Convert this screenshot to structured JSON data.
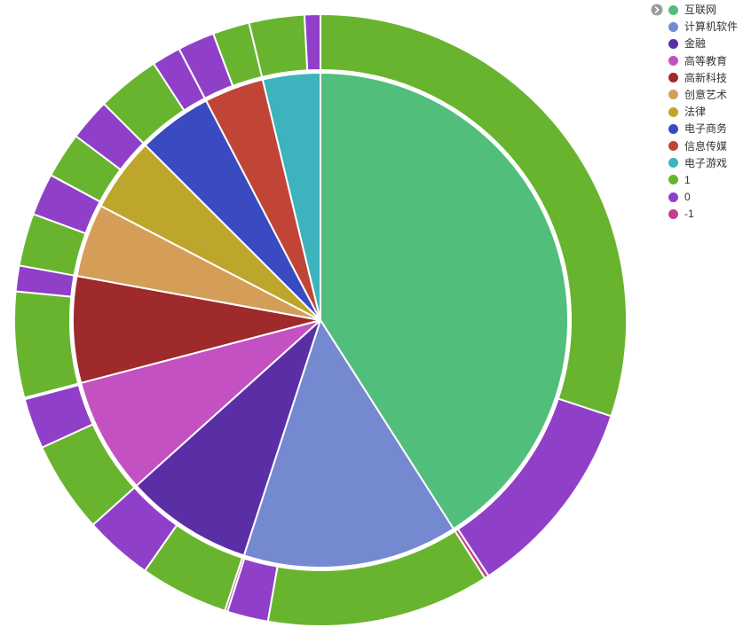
{
  "legend": {
    "position": "top-right",
    "nav_icon": "chevron-right",
    "items": [
      {
        "label": "互联网",
        "en": "internet",
        "color": "#52be7c"
      },
      {
        "label": "计算机软件",
        "en": "software",
        "color": "#7589d1"
      },
      {
        "label": "金融",
        "en": "finance",
        "color": "#5a2fa6"
      },
      {
        "label": "高等教育",
        "en": "education",
        "color": "#c451c2"
      },
      {
        "label": "高新科技",
        "en": "hightech",
        "color": "#9e2a2b"
      },
      {
        "label": "创意艺术",
        "en": "arts",
        "color": "#d59e58"
      },
      {
        "label": "法律",
        "en": "law",
        "color": "#bea62c"
      },
      {
        "label": "电子商务",
        "en": "ecommerce",
        "color": "#3a4ac0"
      },
      {
        "label": "信息传媒",
        "en": "media",
        "color": "#c04537"
      },
      {
        "label": "电子游戏",
        "en": "games",
        "color": "#3cb3bd"
      },
      {
        "label": "1",
        "en": "sentiment-pos",
        "color": "#68b42f"
      },
      {
        "label": "0",
        "en": "sentiment-zero",
        "color": "#9040c8"
      },
      {
        "label": "-1",
        "en": "sentiment-neg",
        "color": "#c43f90"
      }
    ]
  },
  "chart_data": {
    "type": "pie",
    "subtype": "nested-pie: inner ring = industry share, outer ring = sentiment (1 / 0 / -1) per industry",
    "title": "",
    "legend_position": "top-right",
    "background": "#ffffff",
    "border_color": "#ffffff",
    "center": [
      361,
      361
    ],
    "inner_pie_radius": 279,
    "outer_ring_radii": [
      282,
      345
    ],
    "start_angle_deg_clockwise_from_top": 0,
    "sentiment_colors": {
      "1": "#68b42f",
      "0": "#9040c8",
      "-1": "#c43f90"
    },
    "inner_series": [
      {
        "name": "互联网",
        "en": "internet",
        "start_deg": 0,
        "end_deg": 147.5,
        "percent": 41.0,
        "color": "#52be7c"
      },
      {
        "name": "计算机软件",
        "en": "software",
        "start_deg": 147.5,
        "end_deg": 198,
        "percent": 14.0,
        "color": "#7589d1"
      },
      {
        "name": "金融",
        "en": "finance",
        "start_deg": 198,
        "end_deg": 228,
        "percent": 8.3,
        "color": "#5a2fa6"
      },
      {
        "name": "高等教育",
        "en": "education",
        "start_deg": 228,
        "end_deg": 255.3,
        "percent": 7.6,
        "color": "#c451c2"
      },
      {
        "name": "高新科技",
        "en": "hightech",
        "start_deg": 255.3,
        "end_deg": 280.3,
        "percent": 6.9,
        "color": "#9e2a2b"
      },
      {
        "name": "创意艺术",
        "en": "arts",
        "start_deg": 280.3,
        "end_deg": 297.5,
        "percent": 4.8,
        "color": "#d59e58"
      },
      {
        "name": "法律",
        "en": "law",
        "start_deg": 297.5,
        "end_deg": 315,
        "percent": 4.9,
        "color": "#bea62c"
      },
      {
        "name": "电子商务",
        "en": "ecommerce",
        "start_deg": 315,
        "end_deg": 332.5,
        "percent": 4.9,
        "color": "#3a4ac0"
      },
      {
        "name": "信息传媒",
        "en": "media",
        "start_deg": 332.5,
        "end_deg": 346.5,
        "percent": 3.9,
        "color": "#c04537"
      },
      {
        "name": "电子游戏",
        "en": "games",
        "start_deg": 346.5,
        "end_deg": 360,
        "percent": 3.8,
        "color": "#3cb3bd"
      }
    ],
    "outer_series": [
      {
        "category": "互联网",
        "en": "internet",
        "sentiment": "1",
        "start_deg": 0,
        "end_deg": 108.3,
        "percent": 30.1
      },
      {
        "category": "互联网",
        "en": "internet",
        "sentiment": "0",
        "start_deg": 108.3,
        "end_deg": 146.7,
        "percent": 10.7
      },
      {
        "category": "互联网",
        "en": "internet",
        "sentiment": "-1",
        "start_deg": 146.7,
        "end_deg": 147.5,
        "percent": 0.2
      },
      {
        "category": "计算机软件",
        "en": "software",
        "sentiment": "1",
        "start_deg": 147.5,
        "end_deg": 189.9,
        "percent": 11.8
      },
      {
        "category": "计算机软件",
        "en": "software",
        "sentiment": "0",
        "start_deg": 189.9,
        "end_deg": 197.7,
        "percent": 2.2
      },
      {
        "category": "计算机软件",
        "en": "software",
        "sentiment": "-1",
        "start_deg": 197.7,
        "end_deg": 198.2,
        "percent": 0.1
      },
      {
        "category": "金融",
        "en": "finance",
        "sentiment": "1",
        "start_deg": 198.2,
        "end_deg": 215,
        "percent": 4.7
      },
      {
        "category": "金融",
        "en": "finance",
        "sentiment": "0",
        "start_deg": 215,
        "end_deg": 228,
        "percent": 3.6
      },
      {
        "category": "高等教育",
        "en": "education",
        "sentiment": "1",
        "start_deg": 228,
        "end_deg": 245.4,
        "percent": 4.8
      },
      {
        "category": "高等教育",
        "en": "education",
        "sentiment": "0",
        "start_deg": 245.4,
        "end_deg": 255,
        "percent": 2.7
      },
      {
        "category": "高等教育",
        "en": "education",
        "sentiment": "-1",
        "start_deg": 255,
        "end_deg": 255.3,
        "percent": 0.1
      },
      {
        "category": "高新科技",
        "en": "hightech",
        "sentiment": "1",
        "start_deg": 255.3,
        "end_deg": 275.4,
        "percent": 5.6
      },
      {
        "category": "高新科技",
        "en": "hightech",
        "sentiment": "0",
        "start_deg": 275.4,
        "end_deg": 280.3,
        "percent": 1.4
      },
      {
        "category": "创意艺术",
        "en": "arts",
        "sentiment": "1",
        "start_deg": 280.3,
        "end_deg": 290.3,
        "percent": 2.8
      },
      {
        "category": "创意艺术",
        "en": "arts",
        "sentiment": "0",
        "start_deg": 290.3,
        "end_deg": 298.3,
        "percent": 2.2
      },
      {
        "category": "法律",
        "en": "law",
        "sentiment": "1",
        "start_deg": 298.3,
        "end_deg": 307,
        "percent": 2.4
      },
      {
        "category": "法律",
        "en": "law",
        "sentiment": "0",
        "start_deg": 307,
        "end_deg": 315,
        "percent": 2.2
      },
      {
        "category": "电子商务",
        "en": "ecommerce",
        "sentiment": "1",
        "start_deg": 315,
        "end_deg": 327,
        "percent": 3.3
      },
      {
        "category": "电子商务",
        "en": "ecommerce",
        "sentiment": "0",
        "start_deg": 327,
        "end_deg": 332.5,
        "percent": 1.5
      },
      {
        "category": "信息传媒",
        "en": "media",
        "sentiment": "0",
        "start_deg": 332.5,
        "end_deg": 339.5,
        "percent": 1.9
      },
      {
        "category": "信息传媒",
        "en": "media",
        "sentiment": "1",
        "start_deg": 339.5,
        "end_deg": 346.5,
        "percent": 1.9
      },
      {
        "category": "电子游戏",
        "en": "games",
        "sentiment": "1",
        "start_deg": 346.5,
        "end_deg": 357,
        "percent": 2.9
      },
      {
        "category": "电子游戏",
        "en": "games",
        "sentiment": "0",
        "start_deg": 357,
        "end_deg": 360,
        "percent": 0.8
      }
    ]
  }
}
